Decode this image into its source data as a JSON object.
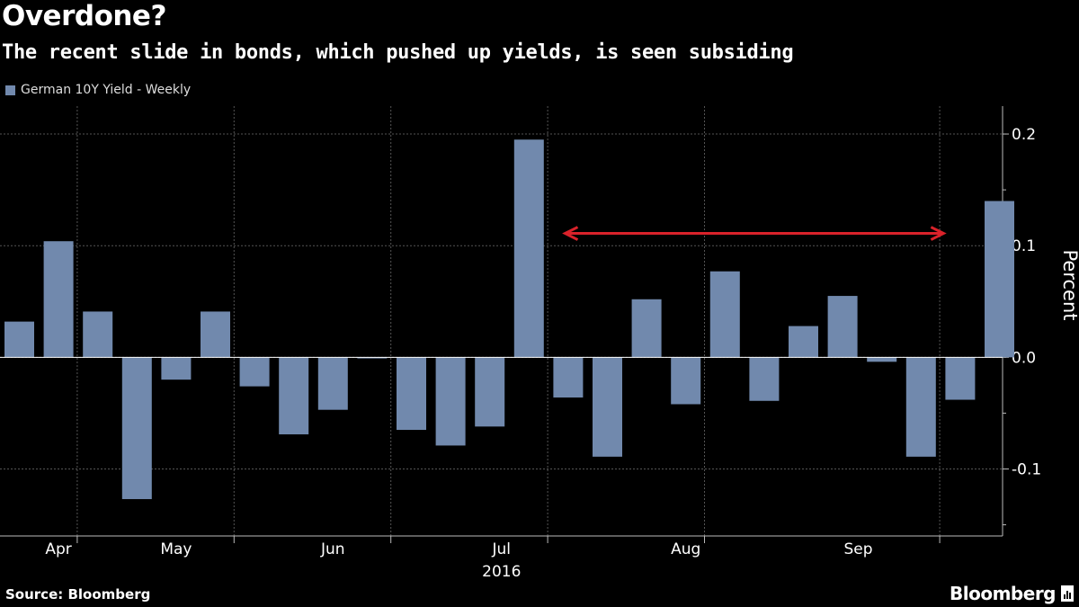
{
  "header": {
    "title": "Overdone?",
    "subtitle": "The recent slide in bonds, which pushed up yields, is seen subsiding"
  },
  "colors": {
    "bar": "#7189ad",
    "arrow": "#d9222a",
    "grid": "#555555",
    "background": "#000000"
  },
  "footer": {
    "source": "Source: Bloomberg",
    "brand": "Bloomberg"
  },
  "chart_data": {
    "type": "bar",
    "legend": "German 10Y Yield - Weekly",
    "ylabel": "Percent",
    "ylim": [
      -0.16,
      0.225
    ],
    "yticks": [
      0.2,
      0.1,
      0.0,
      -0.1
    ],
    "ytick_labels": [
      "0.2",
      "0.1",
      "0.0",
      "-0.1"
    ],
    "values": [
      0.032,
      0.104,
      0.041,
      -0.127,
      -0.02,
      0.041,
      -0.026,
      -0.069,
      -0.047,
      -0.001,
      -0.065,
      -0.079,
      -0.062,
      0.195,
      -0.036,
      -0.089,
      0.052,
      -0.042,
      0.077,
      -0.039,
      0.028,
      0.055,
      -0.004,
      -0.089,
      -0.038,
      0.14
    ],
    "month_labels": [
      {
        "label": "Apr",
        "index": 1
      },
      {
        "label": "May",
        "index": 4
      },
      {
        "label": "Jun",
        "index": 8
      },
      {
        "label": "Jul",
        "index": 12.3
      },
      {
        "label": "Aug",
        "index": 17
      },
      {
        "label": "Sep",
        "index": 21.4
      }
    ],
    "month_gridlines": [
      2,
      6,
      10,
      14,
      18,
      24
    ],
    "year_label": "2016",
    "annotation": {
      "type": "double-arrow",
      "from_index": 14.3,
      "to_index": 24,
      "value": 0.111
    },
    "grid": true
  }
}
